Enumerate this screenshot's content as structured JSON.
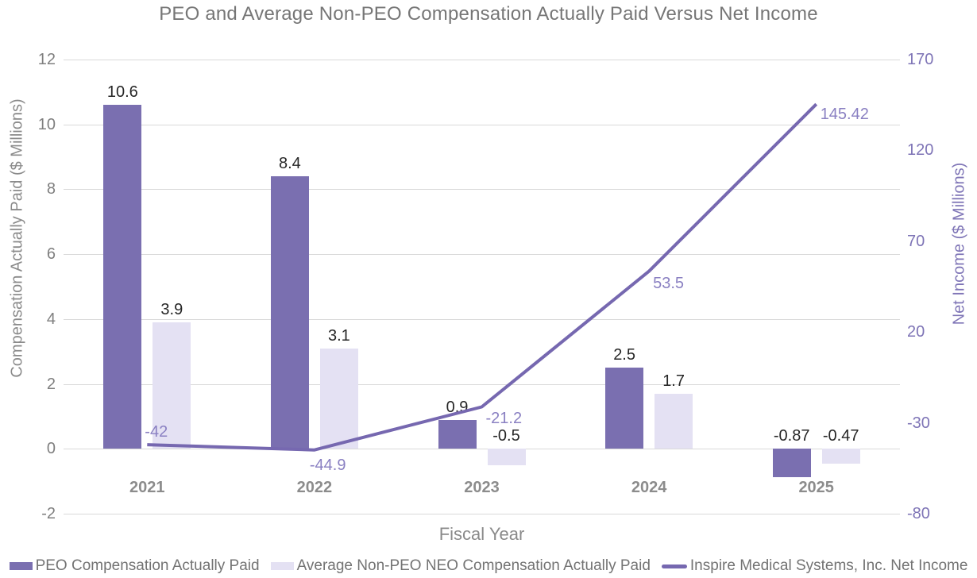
{
  "chart_data": {
    "type": "combo-bar-line",
    "title": "PEO and Average Non-PEO Compensation Actually Paid Versus Net Income",
    "categories": [
      "2021",
      "2022",
      "2023",
      "2024",
      "2025"
    ],
    "bar_series": [
      {
        "name": "PEO Compensation Actually Paid",
        "axis": "left",
        "color": "#7A6FB0",
        "values": [
          10.6,
          8.4,
          0.9,
          2.5,
          -0.87
        ],
        "labels": [
          "10.6",
          "8.4",
          "0.9",
          "2.5",
          "-0.87"
        ]
      },
      {
        "name": "Average Non-PEO NEO Compensation Actually Paid",
        "axis": "left",
        "color": "#E4E1F3",
        "values": [
          3.9,
          3.1,
          -0.5,
          1.7,
          -0.47
        ],
        "labels": [
          "3.9",
          "3.1",
          "-0.5",
          "1.7",
          "-0.47"
        ]
      }
    ],
    "line_series": {
      "name": "Inspire Medical Systems, Inc. Net Income",
      "axis": "right",
      "color": "#7668B0",
      "label_color": "#8A80C2",
      "values": [
        -42,
        -44.9,
        -21.2,
        53.5,
        145.42
      ],
      "labels": [
        "-42",
        "-44.9",
        "-21.2",
        "53.5",
        "145.42"
      ]
    },
    "xlabel": "Fiscal Year",
    "left_axis": {
      "label": "Compensation Actually Paid ($ Millions)",
      "min": -2,
      "max": 12,
      "ticks": [
        12,
        10,
        8,
        6,
        4,
        2,
        0,
        -2
      ]
    },
    "right_axis": {
      "label": "Net Income ($ Millions)",
      "min": -80,
      "max": 170,
      "ticks": [
        170,
        120,
        70,
        20,
        -30,
        -80
      ]
    },
    "grid": true,
    "legend_position": "bottom"
  }
}
